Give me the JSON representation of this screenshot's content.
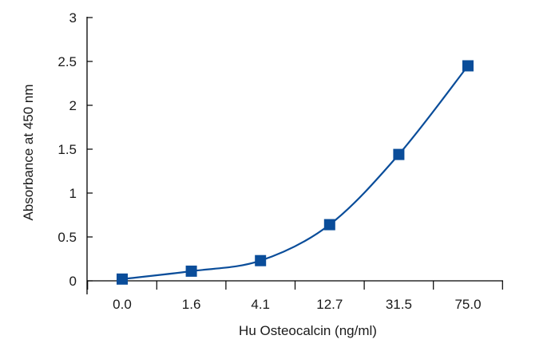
{
  "chart_data": {
    "type": "line",
    "title": "",
    "xlabel": "Hu Osteocalcin (ng/ml)",
    "ylabel": "Absorbance at 450 nm",
    "categories": [
      "0.0",
      "1.6",
      "4.1",
      "12.7",
      "31.5",
      "75.0"
    ],
    "series": [
      {
        "values": [
          0.02,
          0.11,
          0.23,
          0.64,
          1.44,
          2.45
        ]
      }
    ],
    "ylim": [
      0,
      3
    ],
    "yticks": [
      0,
      0.5,
      1,
      1.5,
      2,
      2.5,
      3
    ],
    "ytick_labels": [
      "0",
      "0.5",
      "1",
      "1.5",
      "2",
      "2.5",
      "3"
    ],
    "grid": false,
    "marker": "square",
    "curve": "smooth",
    "color": "#0a4d9a"
  }
}
